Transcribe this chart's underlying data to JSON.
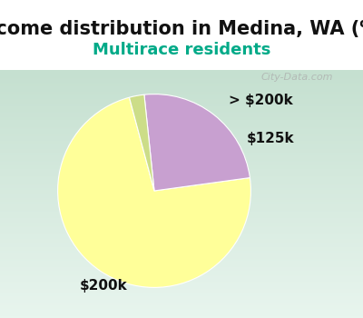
{
  "title": "Income distribution in Medina, WA (%)",
  "subtitle": "Multirace residents",
  "title_bg_color": "#00EEFF",
  "chart_bg_color_top": "#c8e8d8",
  "chart_bg_color_bottom": "#e8f4ee",
  "slices": [
    {
      "label": "$200k",
      "value": 73.0,
      "color": "#FFFF99"
    },
    {
      "label": "> $200k",
      "value": 24.5,
      "color": "#C8A0D0"
    },
    {
      "label": "$125k",
      "value": 2.5,
      "color": "#CCDD88"
    }
  ],
  "label_fontsize": 11,
  "title_fontsize": 15,
  "subtitle_fontsize": 13,
  "subtitle_color": "#00AA88",
  "title_color": "#111111"
}
